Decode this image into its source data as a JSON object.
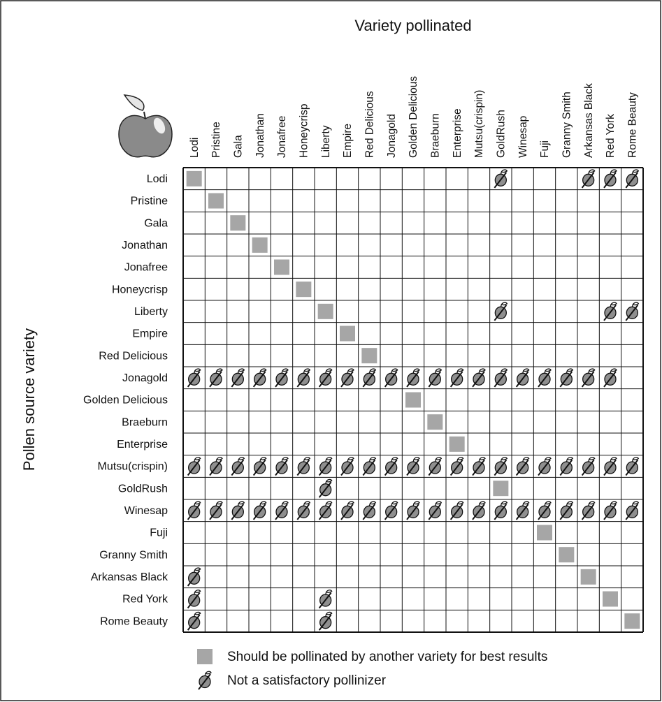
{
  "title": "Variety pollinated",
  "y_label": "Pollen source variety",
  "varieties": [
    "Lodi",
    "Pristine",
    "Gala",
    "Jonathan",
    "Jonafree",
    "Honeycrisp",
    "Liberty",
    "Empire",
    "Red Delicious",
    "Jonagold",
    "Golden Delicious",
    "Braeburn",
    "Enterprise",
    "Mutsu(crispin)",
    "GoldRush",
    "Winesap",
    "Fuji",
    "Granny Smith",
    "Arkansas Black",
    "Red York",
    "Rome Beauty"
  ],
  "legend": [
    {
      "symbol": "self",
      "label": "Should be pollinated by another variety for best results"
    },
    {
      "symbol": "not",
      "label": "Not a satisfactory pollinizer"
    }
  ],
  "cells": [
    [
      "self",
      null,
      null,
      null,
      null,
      null,
      null,
      null,
      null,
      null,
      null,
      null,
      null,
      null,
      "not",
      null,
      null,
      null,
      "not",
      "not",
      "not"
    ],
    [
      null,
      "self",
      null,
      null,
      null,
      null,
      null,
      null,
      null,
      null,
      null,
      null,
      null,
      null,
      null,
      null,
      null,
      null,
      null,
      null,
      null
    ],
    [
      null,
      null,
      "self",
      null,
      null,
      null,
      null,
      null,
      null,
      null,
      null,
      null,
      null,
      null,
      null,
      null,
      null,
      null,
      null,
      null,
      null
    ],
    [
      null,
      null,
      null,
      "self",
      null,
      null,
      null,
      null,
      null,
      null,
      null,
      null,
      null,
      null,
      null,
      null,
      null,
      null,
      null,
      null,
      null
    ],
    [
      null,
      null,
      null,
      null,
      "self",
      null,
      null,
      null,
      null,
      null,
      null,
      null,
      null,
      null,
      null,
      null,
      null,
      null,
      null,
      null,
      null
    ],
    [
      null,
      null,
      null,
      null,
      null,
      "self",
      null,
      null,
      null,
      null,
      null,
      null,
      null,
      null,
      null,
      null,
      null,
      null,
      null,
      null,
      null
    ],
    [
      null,
      null,
      null,
      null,
      null,
      null,
      "self",
      null,
      null,
      null,
      null,
      null,
      null,
      null,
      "not",
      null,
      null,
      null,
      null,
      "not",
      "not"
    ],
    [
      null,
      null,
      null,
      null,
      null,
      null,
      null,
      "self",
      null,
      null,
      null,
      null,
      null,
      null,
      null,
      null,
      null,
      null,
      null,
      null,
      null
    ],
    [
      null,
      null,
      null,
      null,
      null,
      null,
      null,
      null,
      "self",
      null,
      null,
      null,
      null,
      null,
      null,
      null,
      null,
      null,
      null,
      null,
      null
    ],
    [
      "not",
      "not",
      "not",
      "not",
      "not",
      "not",
      "not",
      "not",
      "not",
      "not",
      "not",
      "not",
      "not",
      "not",
      "not",
      "not",
      "not",
      "not",
      "not",
      "not",
      null
    ],
    [
      null,
      null,
      null,
      null,
      null,
      null,
      null,
      null,
      null,
      null,
      "self",
      null,
      null,
      null,
      null,
      null,
      null,
      null,
      null,
      null,
      null
    ],
    [
      null,
      null,
      null,
      null,
      null,
      null,
      null,
      null,
      null,
      null,
      null,
      "self",
      null,
      null,
      null,
      null,
      null,
      null,
      null,
      null,
      null
    ],
    [
      null,
      null,
      null,
      null,
      null,
      null,
      null,
      null,
      null,
      null,
      null,
      null,
      "self",
      null,
      null,
      null,
      null,
      null,
      null,
      null,
      null
    ],
    [
      "not",
      "not",
      "not",
      "not",
      "not",
      "not",
      "not",
      "not",
      "not",
      "not",
      "not",
      "not",
      "not",
      "not",
      "not",
      "not",
      "not",
      "not",
      "not",
      "not",
      "not"
    ],
    [
      null,
      null,
      null,
      null,
      null,
      null,
      "not",
      null,
      null,
      null,
      null,
      null,
      null,
      null,
      "self",
      null,
      null,
      null,
      null,
      null,
      null
    ],
    [
      "not",
      "not",
      "not",
      "not",
      "not",
      "not",
      "not",
      "not",
      "not",
      "not",
      "not",
      "not",
      "not",
      "not",
      "not",
      "not",
      "not",
      "not",
      "not",
      "not",
      "not"
    ],
    [
      null,
      null,
      null,
      null,
      null,
      null,
      null,
      null,
      null,
      null,
      null,
      null,
      null,
      null,
      null,
      null,
      "self",
      null,
      null,
      null,
      null
    ],
    [
      null,
      null,
      null,
      null,
      null,
      null,
      null,
      null,
      null,
      null,
      null,
      null,
      null,
      null,
      null,
      null,
      null,
      "self",
      null,
      null,
      null
    ],
    [
      "not",
      null,
      null,
      null,
      null,
      null,
      null,
      null,
      null,
      null,
      null,
      null,
      null,
      null,
      null,
      null,
      null,
      null,
      "self",
      null,
      null
    ],
    [
      "not",
      null,
      null,
      null,
      null,
      null,
      "not",
      null,
      null,
      null,
      null,
      null,
      null,
      null,
      null,
      null,
      null,
      null,
      null,
      "self",
      null
    ],
    [
      "not",
      null,
      null,
      null,
      null,
      null,
      "not",
      null,
      null,
      null,
      null,
      null,
      null,
      null,
      null,
      null,
      null,
      null,
      null,
      null,
      "self"
    ]
  ]
}
